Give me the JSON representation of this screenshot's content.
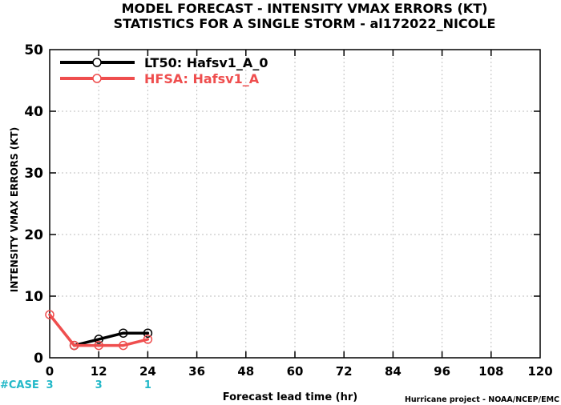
{
  "chart_data": {
    "type": "line",
    "title_line1": "MODEL FORECAST - INTENSITY VMAX ERRORS (KT)",
    "title_line2": "STATISTICS FOR A SINGLE STORM - al172022_NICOLE",
    "xlabel": "Forecast lead time (hr)",
    "ylabel": "INTENSITY VMAX ERRORS (KT)",
    "xlim": [
      0,
      120
    ],
    "ylim": [
      0,
      50
    ],
    "xticks": [
      0,
      12,
      24,
      36,
      48,
      60,
      72,
      84,
      96,
      108,
      120
    ],
    "yticks": [
      0,
      10,
      20,
      30,
      40,
      50
    ],
    "grid": true,
    "legend_position": "top-left",
    "series": [
      {
        "name": "LT50: Hafsv1_A_0",
        "color": "#000000",
        "x": [
          6,
          12,
          18,
          24
        ],
        "y": [
          2,
          3,
          4,
          4
        ]
      },
      {
        "name": "HFSA: Hafsv1_A",
        "color": "#ef4e4e",
        "x": [
          0,
          6,
          12,
          18,
          24
        ],
        "y": [
          7,
          2,
          2,
          2,
          3
        ]
      }
    ],
    "cases_label": "#CASE",
    "cases_color": "#22b8c8",
    "cases": [
      {
        "x": 0,
        "count": "3"
      },
      {
        "x": 12,
        "count": "3"
      },
      {
        "x": 24,
        "count": "1"
      }
    ],
    "credit": "Hurricane project - NOAA/NCEP/EMC"
  }
}
